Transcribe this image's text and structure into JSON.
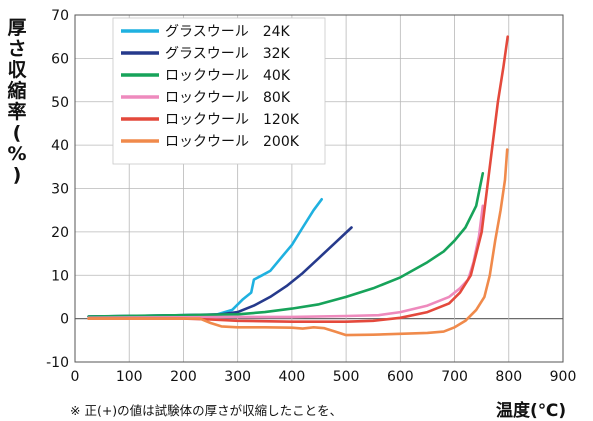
{
  "chart_data": {
    "type": "line",
    "ylabel": "厚さ収縮率(%)",
    "xlabel": "温度(℃)",
    "note": "※ 正(+)の値は試験体の厚さが収縮したことを、",
    "xlim": [
      0,
      900
    ],
    "ylim": [
      -10,
      70
    ],
    "xticks": [
      "0",
      "100",
      "200",
      "300",
      "400",
      "500",
      "600",
      "700",
      "800",
      "900"
    ],
    "yticks": [
      "-10",
      "0",
      "10",
      "20",
      "30",
      "40",
      "50",
      "60",
      "70"
    ],
    "grid": true,
    "legend_position": "top-left",
    "series": [
      {
        "name": "グラスウール　24K",
        "color": "#1fb1e0",
        "points": [
          [
            25,
            0.5
          ],
          [
            100,
            0.6
          ],
          [
            200,
            0.8
          ],
          [
            260,
            0.9
          ],
          [
            290,
            2
          ],
          [
            310,
            4.5
          ],
          [
            325,
            6
          ],
          [
            330,
            9
          ],
          [
            345,
            10
          ],
          [
            360,
            11
          ],
          [
            380,
            14
          ],
          [
            400,
            17
          ],
          [
            420,
            21
          ],
          [
            440,
            25
          ],
          [
            455,
            27.5
          ]
        ]
      },
      {
        "name": "グラスウール　32K",
        "color": "#263a8c",
        "points": [
          [
            25,
            0.5
          ],
          [
            100,
            0.6
          ],
          [
            200,
            0.8
          ],
          [
            270,
            1
          ],
          [
            300,
            1.5
          ],
          [
            330,
            3
          ],
          [
            360,
            5
          ],
          [
            390,
            7.5
          ],
          [
            420,
            10.5
          ],
          [
            450,
            14
          ],
          [
            480,
            17.5
          ],
          [
            510,
            21
          ]
        ]
      },
      {
        "name": "ロックウール　40K",
        "color": "#17a35a",
        "points": [
          [
            25,
            0.5
          ],
          [
            200,
            0.8
          ],
          [
            300,
            1
          ],
          [
            350,
            1.5
          ],
          [
            400,
            2.3
          ],
          [
            450,
            3.3
          ],
          [
            500,
            5
          ],
          [
            550,
            7
          ],
          [
            600,
            9.5
          ],
          [
            650,
            13
          ],
          [
            680,
            15.5
          ],
          [
            700,
            18
          ],
          [
            720,
            21
          ],
          [
            740,
            26
          ],
          [
            752,
            33.5
          ]
        ]
      },
      {
        "name": "ロックウール　80K",
        "color": "#ee8abd",
        "points": [
          [
            25,
            0.2
          ],
          [
            200,
            0.3
          ],
          [
            300,
            0.4
          ],
          [
            400,
            0.4
          ],
          [
            500,
            0.6
          ],
          [
            560,
            0.8
          ],
          [
            600,
            1.5
          ],
          [
            650,
            3
          ],
          [
            690,
            5
          ],
          [
            710,
            7
          ],
          [
            725,
            9
          ],
          [
            735,
            13
          ],
          [
            745,
            19
          ],
          [
            752,
            26
          ]
        ]
      },
      {
        "name": "ロックウール　120K",
        "color": "#e4493c",
        "points": [
          [
            25,
            0
          ],
          [
            200,
            0
          ],
          [
            250,
            -0.2
          ],
          [
            300,
            -0.5
          ],
          [
            400,
            -0.7
          ],
          [
            500,
            -0.7
          ],
          [
            550,
            -0.5
          ],
          [
            600,
            0.2
          ],
          [
            650,
            1.5
          ],
          [
            690,
            3.5
          ],
          [
            710,
            6
          ],
          [
            730,
            10
          ],
          [
            750,
            20
          ],
          [
            760,
            30
          ],
          [
            770,
            40
          ],
          [
            780,
            50
          ],
          [
            790,
            58
          ],
          [
            798,
            65
          ]
        ]
      },
      {
        "name": "ロックウール　200K",
        "color": "#f08a4b",
        "points": [
          [
            25,
            0
          ],
          [
            200,
            0
          ],
          [
            230,
            0
          ],
          [
            250,
            -1
          ],
          [
            270,
            -1.8
          ],
          [
            300,
            -2
          ],
          [
            350,
            -2
          ],
          [
            400,
            -2.1
          ],
          [
            420,
            -2.3
          ],
          [
            440,
            -2
          ],
          [
            460,
            -2.2
          ],
          [
            480,
            -3
          ],
          [
            500,
            -3.8
          ],
          [
            550,
            -3.7
          ],
          [
            600,
            -3.5
          ],
          [
            650,
            -3.3
          ],
          [
            680,
            -3
          ],
          [
            700,
            -2
          ],
          [
            720,
            -0.5
          ],
          [
            740,
            2
          ],
          [
            755,
            5
          ],
          [
            765,
            10
          ],
          [
            775,
            18
          ],
          [
            785,
            25
          ],
          [
            793,
            32
          ],
          [
            797,
            39
          ]
        ]
      }
    ]
  }
}
